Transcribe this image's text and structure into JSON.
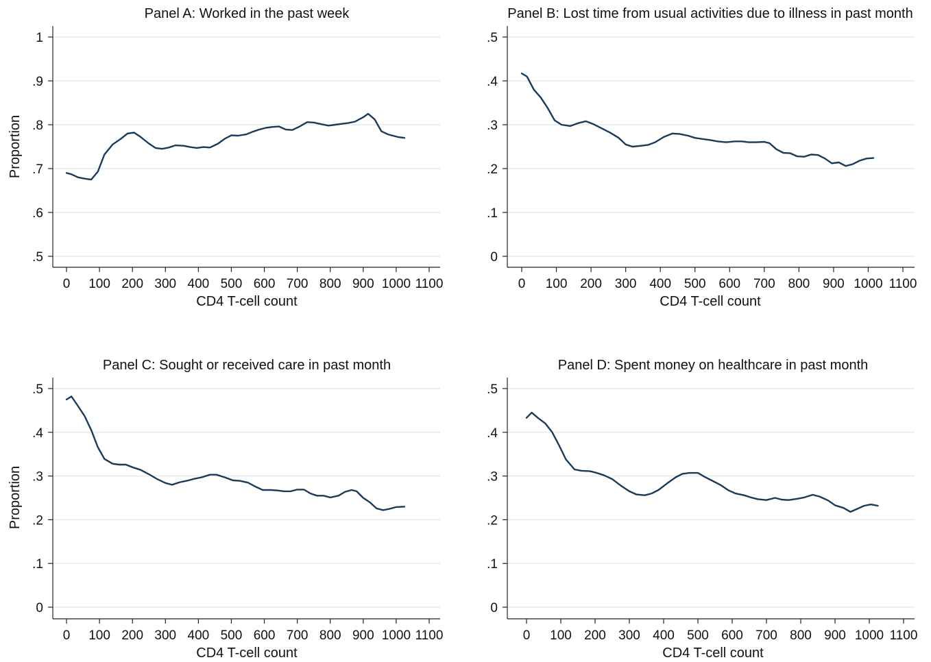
{
  "chart_data": [
    {
      "type": "line",
      "title": "Panel A: Worked in the past week",
      "xlabel": "CD4 T-cell count",
      "ylabel": "Proportion",
      "xlim": [
        0,
        1100
      ],
      "ylim": [
        0.5,
        1.0
      ],
      "xticks": [
        "0",
        "100",
        "200",
        "300",
        "400",
        "500",
        "600",
        "700",
        "800",
        "900",
        "1000",
        "1100"
      ],
      "yticks": [
        ".5",
        ".6",
        ".7",
        ".8",
        ".9",
        "1"
      ],
      "grid": true,
      "line_color": "#1a3a5a",
      "x": [
        0,
        15,
        35,
        55,
        75,
        95,
        115,
        140,
        165,
        185,
        205,
        225,
        250,
        270,
        290,
        310,
        330,
        355,
        375,
        395,
        415,
        435,
        460,
        480,
        500,
        520,
        545,
        565,
        585,
        605,
        625,
        645,
        665,
        685,
        710,
        730,
        750,
        775,
        795,
        815,
        835,
        855,
        875,
        900,
        915,
        935,
        955,
        975,
        1005,
        1025
      ],
      "y": [
        0.69,
        0.687,
        0.68,
        0.677,
        0.675,
        0.693,
        0.732,
        0.755,
        0.768,
        0.78,
        0.782,
        0.772,
        0.757,
        0.747,
        0.745,
        0.748,
        0.753,
        0.752,
        0.749,
        0.747,
        0.749,
        0.748,
        0.757,
        0.768,
        0.776,
        0.775,
        0.778,
        0.784,
        0.789,
        0.793,
        0.795,
        0.796,
        0.789,
        0.788,
        0.797,
        0.806,
        0.805,
        0.801,
        0.798,
        0.8,
        0.802,
        0.804,
        0.807,
        0.817,
        0.825,
        0.812,
        0.785,
        0.778,
        0.772,
        0.77
      ]
    },
    {
      "type": "line",
      "title": "Panel B: Lost time from usual activities due to illness in past month",
      "xlabel": "CD4 T-cell count",
      "ylabel": "",
      "xlim": [
        0,
        1100
      ],
      "ylim": [
        0,
        0.5
      ],
      "xticks": [
        "0",
        "100",
        "200",
        "300",
        "400",
        "500",
        "600",
        "700",
        "800",
        "900",
        "1000",
        "1100"
      ],
      "yticks": [
        "0",
        ".1",
        ".2",
        ".3",
        ".4",
        ".5"
      ],
      "grid": true,
      "line_color": "#1a3a5a",
      "x": [
        0,
        15,
        35,
        55,
        75,
        95,
        115,
        140,
        165,
        185,
        205,
        230,
        255,
        280,
        300,
        320,
        345,
        365,
        385,
        410,
        435,
        455,
        480,
        500,
        525,
        545,
        565,
        590,
        615,
        635,
        655,
        675,
        700,
        715,
        735,
        755,
        775,
        795,
        815,
        835,
        855,
        875,
        895,
        915,
        935,
        955,
        975,
        995,
        1015
      ],
      "y": [
        0.417,
        0.41,
        0.38,
        0.362,
        0.338,
        0.31,
        0.3,
        0.297,
        0.304,
        0.308,
        0.302,
        0.292,
        0.282,
        0.27,
        0.255,
        0.25,
        0.252,
        0.254,
        0.26,
        0.272,
        0.28,
        0.279,
        0.275,
        0.27,
        0.267,
        0.265,
        0.262,
        0.26,
        0.262,
        0.262,
        0.26,
        0.26,
        0.261,
        0.258,
        0.244,
        0.236,
        0.235,
        0.228,
        0.227,
        0.232,
        0.231,
        0.223,
        0.212,
        0.214,
        0.206,
        0.21,
        0.218,
        0.223,
        0.224
      ]
    },
    {
      "type": "line",
      "title": "Panel C: Sought or received care in past month",
      "xlabel": "CD4 T-cell count",
      "ylabel": "Proportion",
      "xlim": [
        0,
        1100
      ],
      "ylim": [
        0,
        0.5
      ],
      "xticks": [
        "0",
        "100",
        "200",
        "300",
        "400",
        "500",
        "600",
        "700",
        "800",
        "900",
        "1000",
        "1100"
      ],
      "yticks": [
        "0",
        ".1",
        ".2",
        ".3",
        ".4",
        ".5"
      ],
      "grid": true,
      "line_color": "#1a3a5a",
      "x": [
        0,
        15,
        35,
        55,
        75,
        95,
        115,
        140,
        160,
        180,
        200,
        225,
        250,
        275,
        300,
        320,
        345,
        365,
        390,
        410,
        435,
        455,
        480,
        505,
        525,
        550,
        575,
        595,
        620,
        640,
        660,
        680,
        700,
        720,
        740,
        760,
        780,
        800,
        825,
        845,
        865,
        880,
        900,
        920,
        940,
        960,
        980,
        1000,
        1025
      ],
      "y": [
        0.475,
        0.482,
        0.46,
        0.437,
        0.405,
        0.366,
        0.339,
        0.328,
        0.326,
        0.326,
        0.32,
        0.314,
        0.304,
        0.293,
        0.284,
        0.28,
        0.286,
        0.289,
        0.294,
        0.297,
        0.303,
        0.303,
        0.297,
        0.29,
        0.289,
        0.285,
        0.275,
        0.268,
        0.268,
        0.267,
        0.265,
        0.265,
        0.269,
        0.269,
        0.26,
        0.255,
        0.255,
        0.251,
        0.255,
        0.264,
        0.268,
        0.265,
        0.25,
        0.24,
        0.226,
        0.222,
        0.225,
        0.229,
        0.23
      ]
    },
    {
      "type": "line",
      "title": "Panel D: Spent money on healthcare in past month",
      "xlabel": "CD4 T-cell count",
      "ylabel": "",
      "xlim": [
        0,
        1100
      ],
      "ylim": [
        0,
        0.5
      ],
      "xticks": [
        "0",
        "100",
        "200",
        "300",
        "400",
        "500",
        "600",
        "700",
        "800",
        "900",
        "1000",
        "1100"
      ],
      "yticks": [
        "0",
        ".1",
        ".2",
        ".3",
        ".4",
        ".5"
      ],
      "grid": true,
      "line_color": "#1a3a5a",
      "x": [
        0,
        15,
        35,
        55,
        75,
        95,
        115,
        140,
        160,
        185,
        205,
        225,
        250,
        275,
        300,
        320,
        345,
        365,
        385,
        410,
        435,
        455,
        475,
        500,
        520,
        540,
        565,
        590,
        610,
        635,
        655,
        675,
        700,
        725,
        745,
        765,
        790,
        810,
        835,
        855,
        880,
        900,
        925,
        945,
        965,
        985,
        1005,
        1025
      ],
      "y": [
        0.433,
        0.445,
        0.432,
        0.42,
        0.4,
        0.37,
        0.338,
        0.315,
        0.312,
        0.311,
        0.307,
        0.302,
        0.293,
        0.278,
        0.265,
        0.258,
        0.256,
        0.26,
        0.268,
        0.283,
        0.297,
        0.305,
        0.307,
        0.307,
        0.298,
        0.29,
        0.28,
        0.267,
        0.26,
        0.256,
        0.251,
        0.247,
        0.245,
        0.25,
        0.246,
        0.245,
        0.248,
        0.251,
        0.257,
        0.253,
        0.244,
        0.233,
        0.227,
        0.218,
        0.225,
        0.232,
        0.235,
        0.232
      ]
    }
  ]
}
